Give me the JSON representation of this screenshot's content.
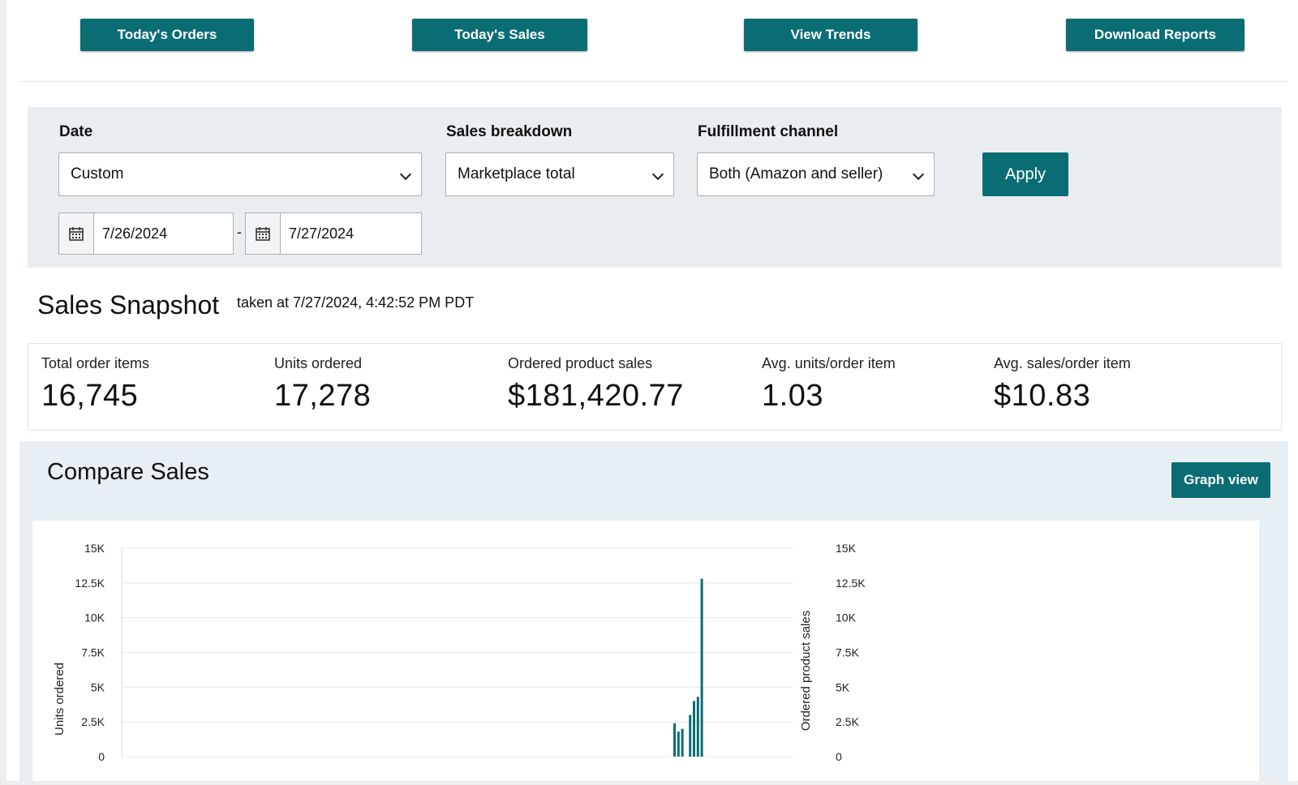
{
  "header": {
    "buttons": [
      "Today's Orders",
      "Today's Sales",
      "View Trends",
      "Download Reports"
    ]
  },
  "filters": {
    "date_label": "Date",
    "date_value": "Custom",
    "breakdown_label": "Sales breakdown",
    "breakdown_value": "Marketplace total",
    "channel_label": "Fulfillment channel",
    "channel_value": "Both (Amazon and seller)",
    "apply_label": "Apply",
    "start_date": "7/26/2024",
    "end_date": "7/27/2024",
    "separator": "-"
  },
  "snapshot": {
    "title": "Sales Snapshot",
    "taken_at": "taken at 7/27/2024, 4:42:52 PM PDT",
    "metrics": [
      {
        "label": "Total order items",
        "value": "16,745"
      },
      {
        "label": "Units ordered",
        "value": "17,278"
      },
      {
        "label": "Ordered product sales",
        "value": "$181,420.77"
      },
      {
        "label": "Avg. units/order item",
        "value": "1.03"
      },
      {
        "label": "Avg. sales/order item",
        "value": "$10.83"
      }
    ]
  },
  "compare": {
    "title": "Compare Sales",
    "graph_view_label": "Graph view"
  },
  "chart_data": {
    "type": "bar",
    "y_left_label": "Units ordered",
    "y_right_label": "Ordered product sales",
    "y_ticks": [
      "0",
      "2.5K",
      "5K",
      "7.5K",
      "10K",
      "12.5K",
      "15K"
    ],
    "y_right_ticks": [
      "0",
      "2.5K",
      "5K",
      "7.5K",
      "10K",
      "12.5K",
      "15K"
    ],
    "ylim": [
      0,
      15000
    ],
    "series": [
      {
        "name": "Units ordered",
        "values": [
          2400,
          1800,
          2000,
          0,
          3000,
          4000,
          4300,
          12800
        ]
      }
    ],
    "colors": {
      "bar": "#0b6d74",
      "grid": "#e6e8ea"
    }
  },
  "icons": {
    "calendar": "calendar-icon",
    "chevron": "chevron-down-icon"
  },
  "colors": {
    "primary": "#0b6d74",
    "panel": "#eaedf0",
    "compare_bg": "#e8eff4"
  }
}
